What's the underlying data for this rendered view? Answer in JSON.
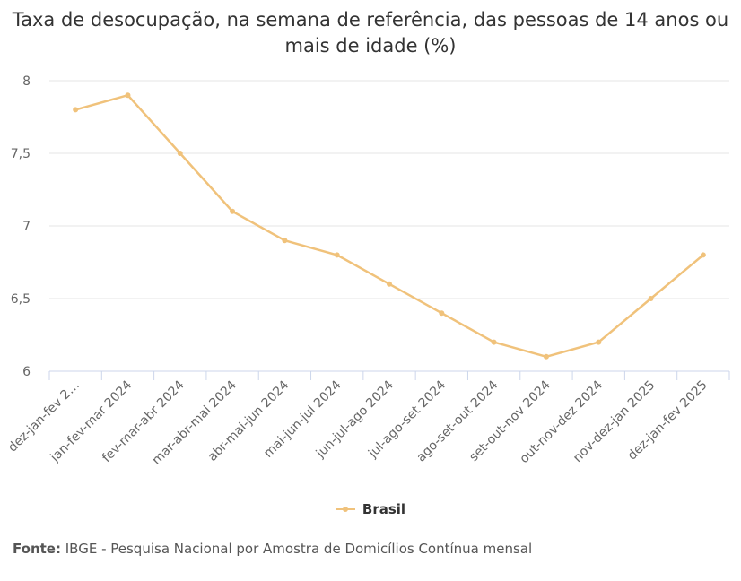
{
  "chart_data": {
    "type": "line",
    "title_lines": [
      "Taxa de desocupação, na semana de referência, das pessoas de 14 anos ou",
      "mais de idade (%)"
    ],
    "categories": [
      "dez-jan-fev 2…",
      "jan-fev-mar 2024",
      "fev-mar-abr 2024",
      "mar-abr-mai 2024",
      "abr-mai-jun 2024",
      "mai-jun-jul 2024",
      "jun-jul-ago 2024",
      "jul-ago-set 2024",
      "ago-set-out 2024",
      "set-out-nov 2024",
      "out-nov-dez 2024",
      "nov-dez-jan 2025",
      "dez-jan-fev 2025"
    ],
    "series": [
      {
        "name": "Brasil",
        "values": [
          7.8,
          7.9,
          7.5,
          7.1,
          6.9,
          6.8,
          6.6,
          6.4,
          6.2,
          6.1,
          6.2,
          6.5,
          6.8
        ]
      }
    ],
    "ylim": [
      6,
      8
    ],
    "yticks": [
      "6",
      "6,5",
      "7",
      "7,5",
      "8"
    ],
    "ytick_values": [
      6,
      6.5,
      7,
      7.5,
      8
    ],
    "grid": true,
    "legend_position": "bottom-center",
    "line_color": "#f0c27b"
  },
  "source": {
    "label": "Fonte:",
    "text": "IBGE - Pesquisa Nacional por Amostra de Domicílios Contínua mensal"
  }
}
